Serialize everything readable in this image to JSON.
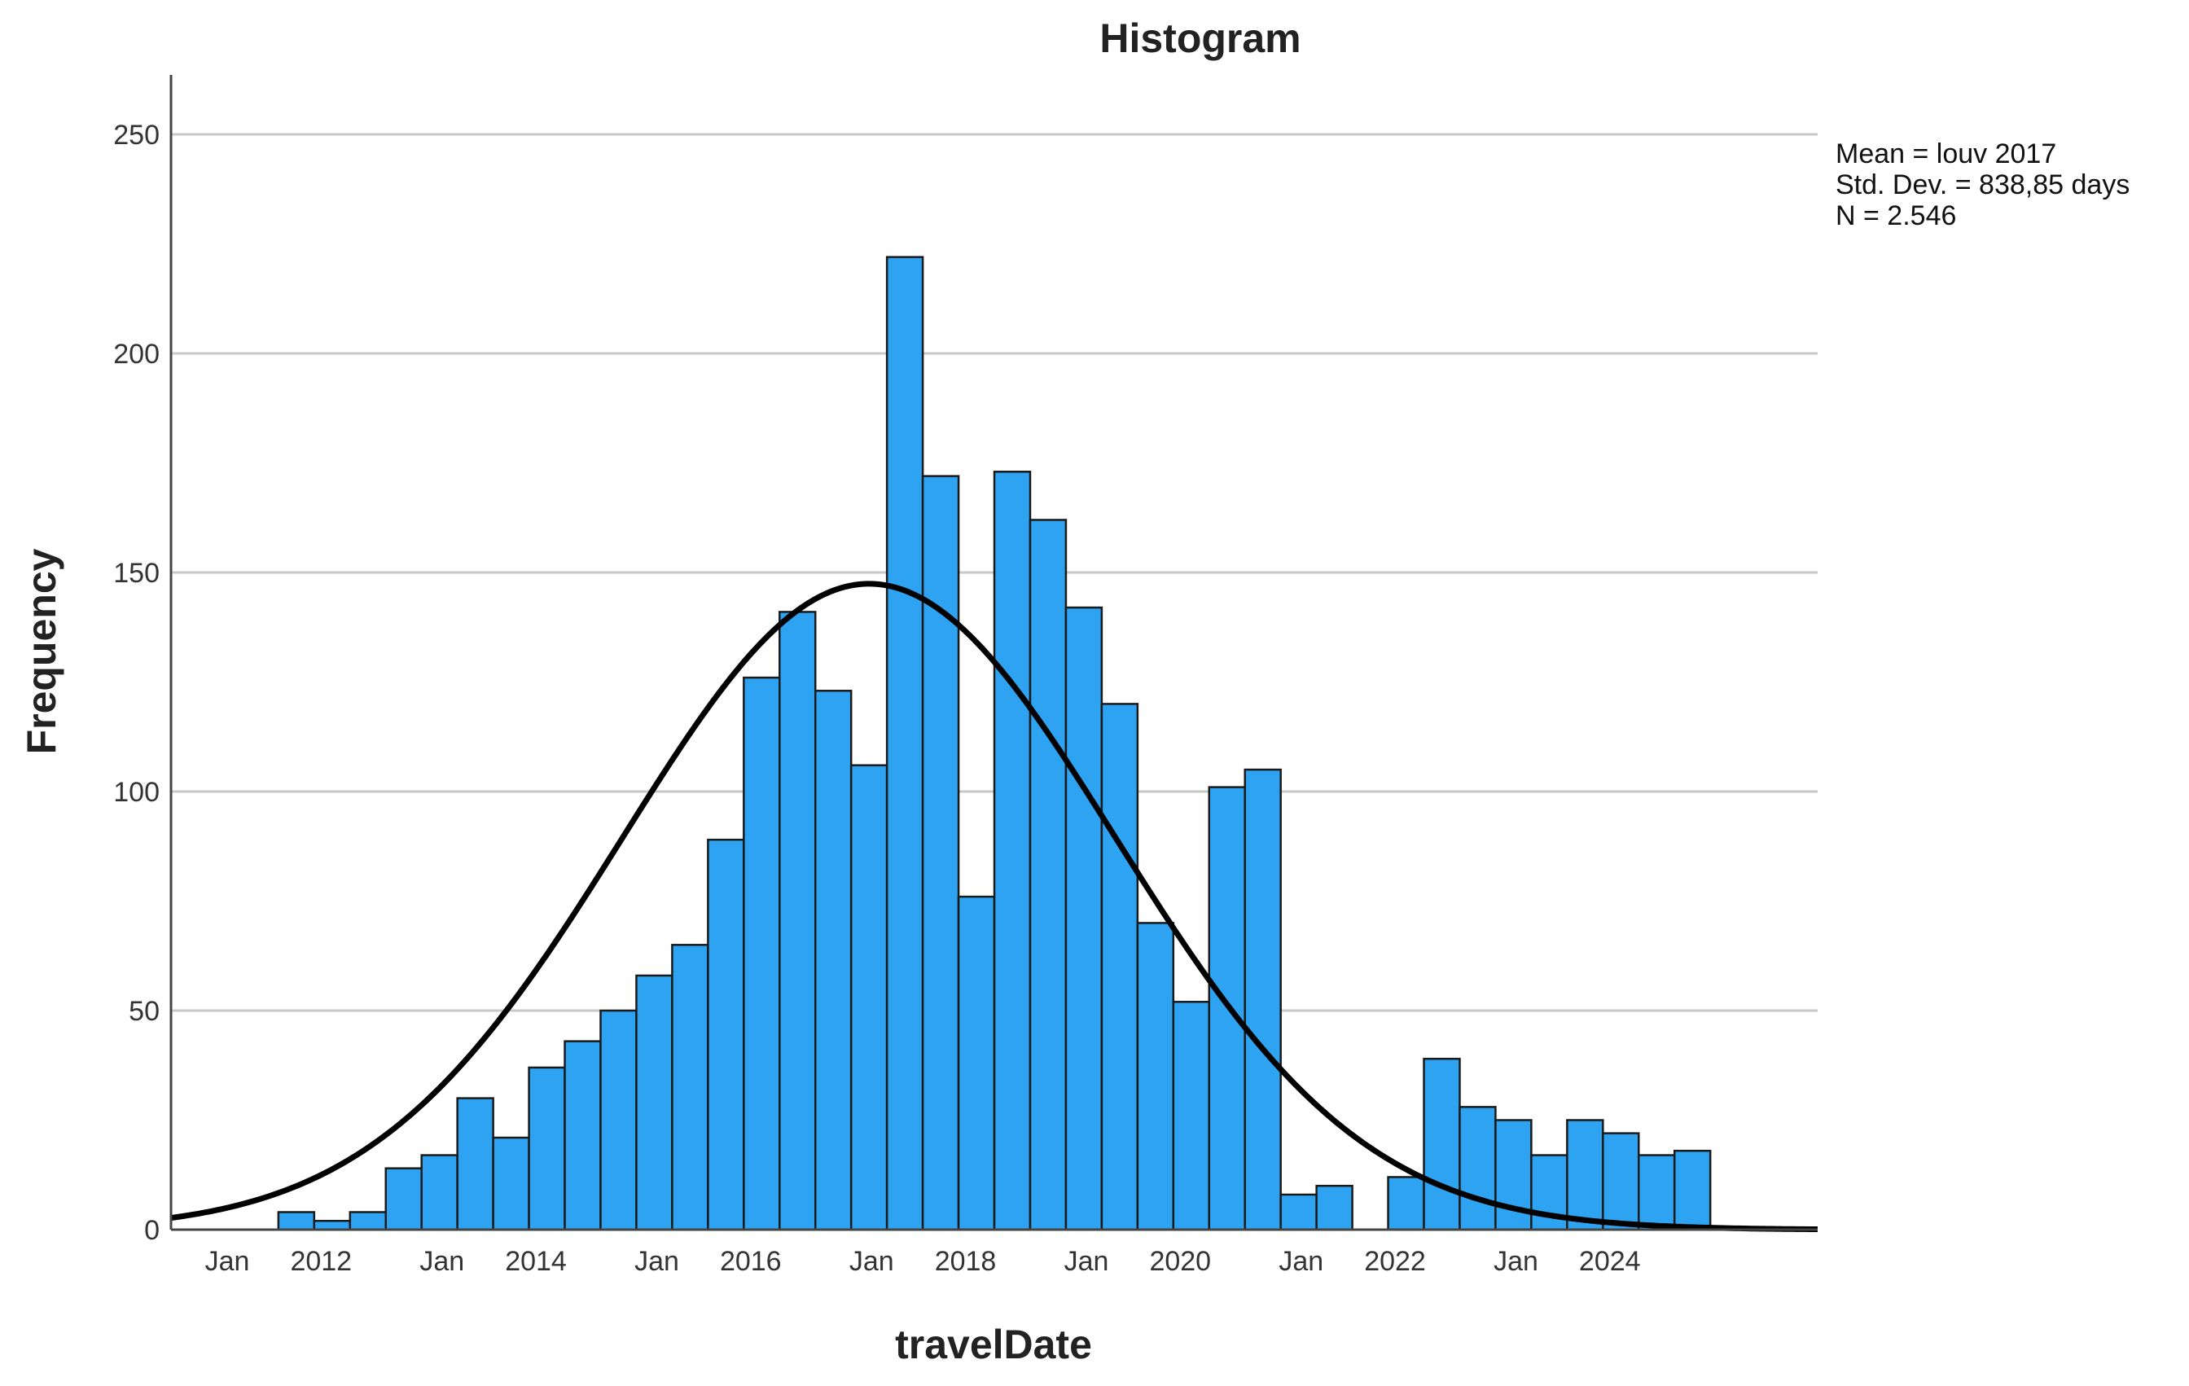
{
  "chart_data": {
    "type": "bar",
    "title": "Histogram",
    "xlabel": "travelDate",
    "ylabel": "Frequency",
    "ylim": [
      0,
      265
    ],
    "grid": true,
    "bin_width_months": 4,
    "x_start": 2011.0,
    "x_end": 2026.333,
    "yticks": [
      0,
      50,
      100,
      150,
      200,
      250
    ],
    "xticks": [
      {
        "x": 2012.0,
        "label_month": "Jan",
        "label_year": "2012"
      },
      {
        "x": 2014.0,
        "label_month": "Jan",
        "label_year": "2014"
      },
      {
        "x": 2016.0,
        "label_month": "Jan",
        "label_year": "2016"
      },
      {
        "x": 2018.0,
        "label_month": "Jan",
        "label_year": "2018"
      },
      {
        "x": 2020.0,
        "label_month": "Jan",
        "label_year": "2020"
      },
      {
        "x": 2022.0,
        "label_month": "Jan",
        "label_year": "2022"
      },
      {
        "x": 2024.0,
        "label_month": "Jan",
        "label_year": "2024"
      }
    ],
    "values": [
      0,
      0,
      0,
      4,
      2,
      4,
      14,
      17,
      30,
      21,
      37,
      43,
      50,
      58,
      65,
      89,
      126,
      141,
      123,
      106,
      222,
      172,
      76,
      173,
      162,
      142,
      120,
      70,
      52,
      101,
      105,
      8,
      10,
      0,
      12,
      39,
      28,
      25,
      17,
      25,
      22,
      17,
      18,
      0,
      0,
      0
    ],
    "normal_curve": {
      "mean": 2017.5,
      "std_years": 2.2966,
      "n": 2546,
      "color": "#000000"
    },
    "bar_color": "#2ea3f2",
    "bar_edge_color": "#1a1a1a",
    "legend_position": "top-right",
    "stats": [
      "Mean = louv 2017",
      "Std. Dev. = 838,85 days",
      "N = 2.546"
    ]
  }
}
